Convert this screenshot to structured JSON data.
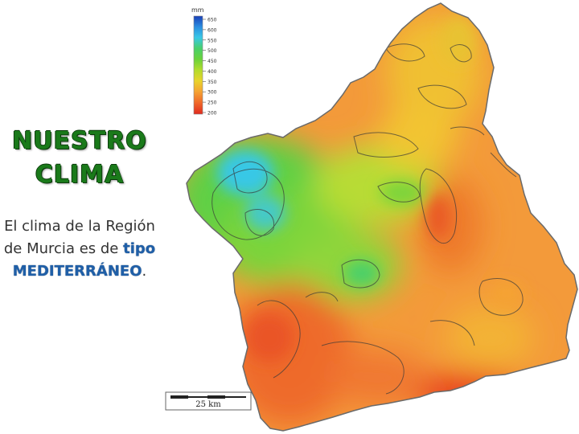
{
  "slide": {
    "title_line1": "NUESTRO",
    "title_line2": "CLIMA",
    "text_pre": "El clima de la Región de Murcia es de ",
    "text_hl1": "tipo",
    "text_hl2": "MEDITERRÁNEO",
    "text_post": "."
  },
  "legend": {
    "unit": "mm",
    "ticks": [
      "650",
      "600",
      "550",
      "500",
      "450",
      "400",
      "350",
      "300",
      "250",
      "200"
    ],
    "colors": [
      "#1a3fb8",
      "#2a8de0",
      "#38c8e6",
      "#49d06a",
      "#6ad23a",
      "#b3dc2c",
      "#e8d42c",
      "#f5a332",
      "#f06a2a",
      "#e02a1e"
    ]
  },
  "scale_bar": {
    "label": "25 km"
  },
  "map": {
    "region": "Región de Murcia",
    "variable": "precipitation",
    "palette": {
      "wet": "#38c8e6",
      "mid": "#6ad23a",
      "dry": "#f5a332",
      "driest": "#e8401e"
    }
  }
}
